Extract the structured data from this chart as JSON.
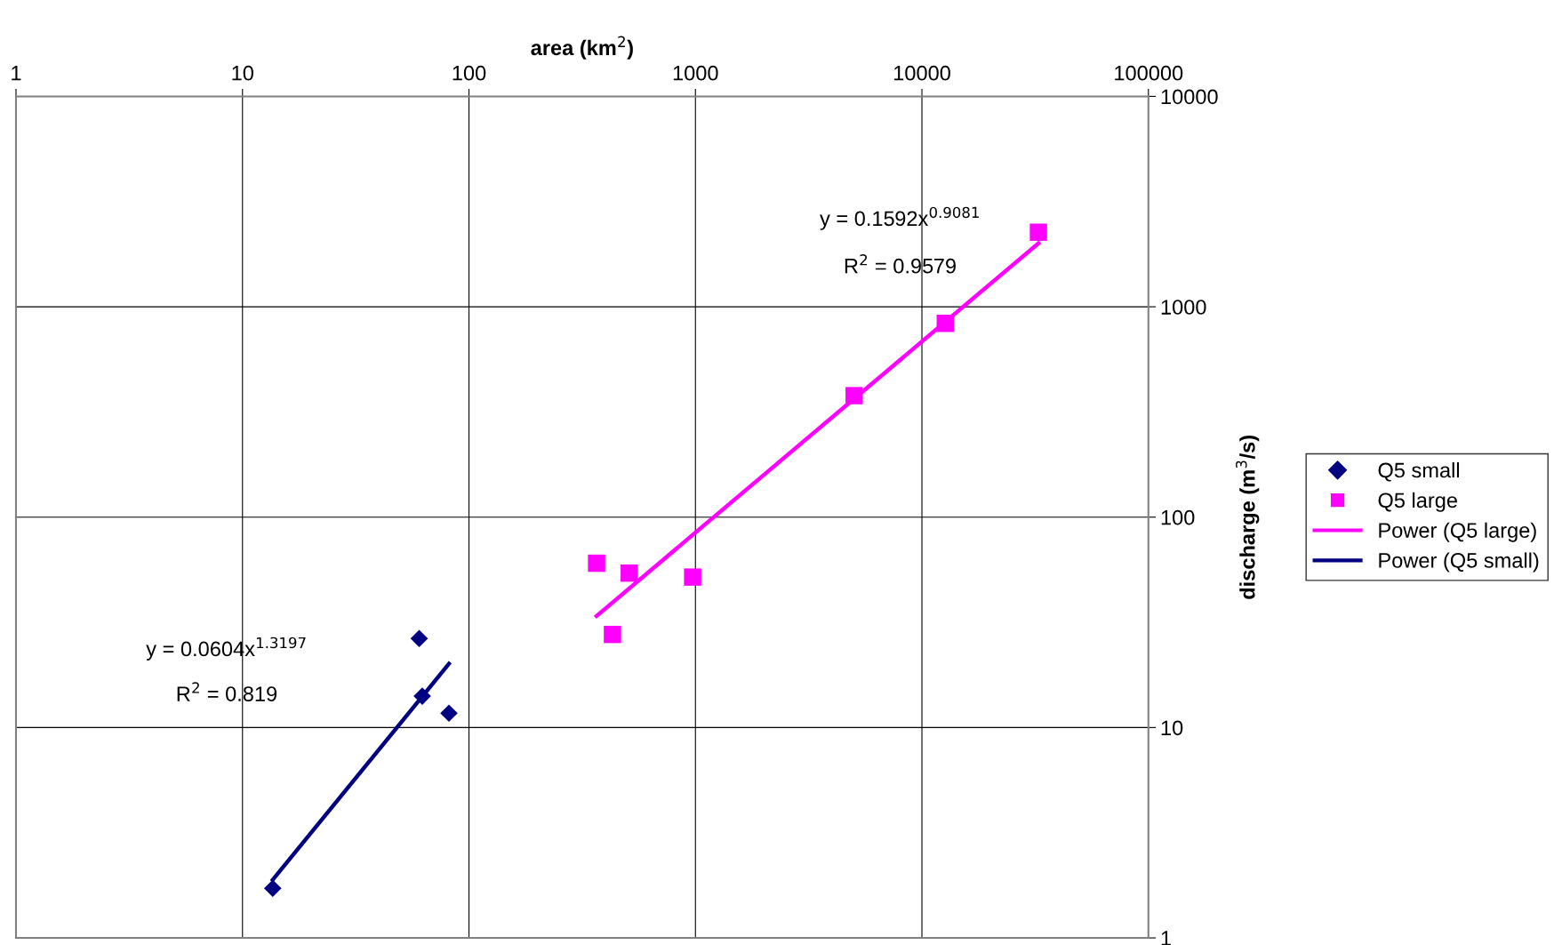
{
  "chart_data": {
    "type": "scatter",
    "xlabel": "area (km$^{2}$)",
    "ylabel": "discharge (m$^{3}$/s)",
    "log": "xy",
    "xlim": [
      1,
      100000
    ],
    "xticks": [
      1,
      10,
      100,
      1000,
      10000,
      100000
    ],
    "ylim": [
      1,
      10000
    ],
    "yticks": [
      1,
      10,
      100,
      1000,
      10000
    ],
    "grid": true,
    "legend": "right",
    "series": [
      {
        "name": "Q5 small",
        "marker": "diamond",
        "color": "#000080",
        "x": [
          13.6,
          60.3,
          62.2,
          81.6
        ],
        "values": [
          1.72,
          26.5,
          14.1,
          11.7
        ]
      },
      {
        "name": "Q5 large",
        "marker": "square",
        "color": "#ff00ff",
        "x": [
          366,
          430,
          510,
          972,
          5020,
          12680,
          32700
        ],
        "values": [
          60.4,
          27.7,
          54.2,
          51.9,
          378,
          834,
          2262
        ]
      },
      {
        "name": "Power (Q5 large)",
        "type": "line",
        "marker": "none",
        "color": "#ff00ff",
        "x": [
          366,
          32700
        ],
        "values": [
          33.9,
          2004
        ]
      },
      {
        "name": "Power (Q5 small)",
        "type": "line",
        "marker": "none",
        "color": "#000080",
        "x": [
          13.6,
          81.6
        ],
        "values": [
          1.89,
          20.1
        ]
      }
    ],
    "annotations": [
      "y = 0.1592x$^{0.9081}$",
      "R$^{2}$ = 0.9579",
      "y = 0.0604x$^{1.3197}$",
      "R$^{2}$ = 0.819"
    ]
  }
}
